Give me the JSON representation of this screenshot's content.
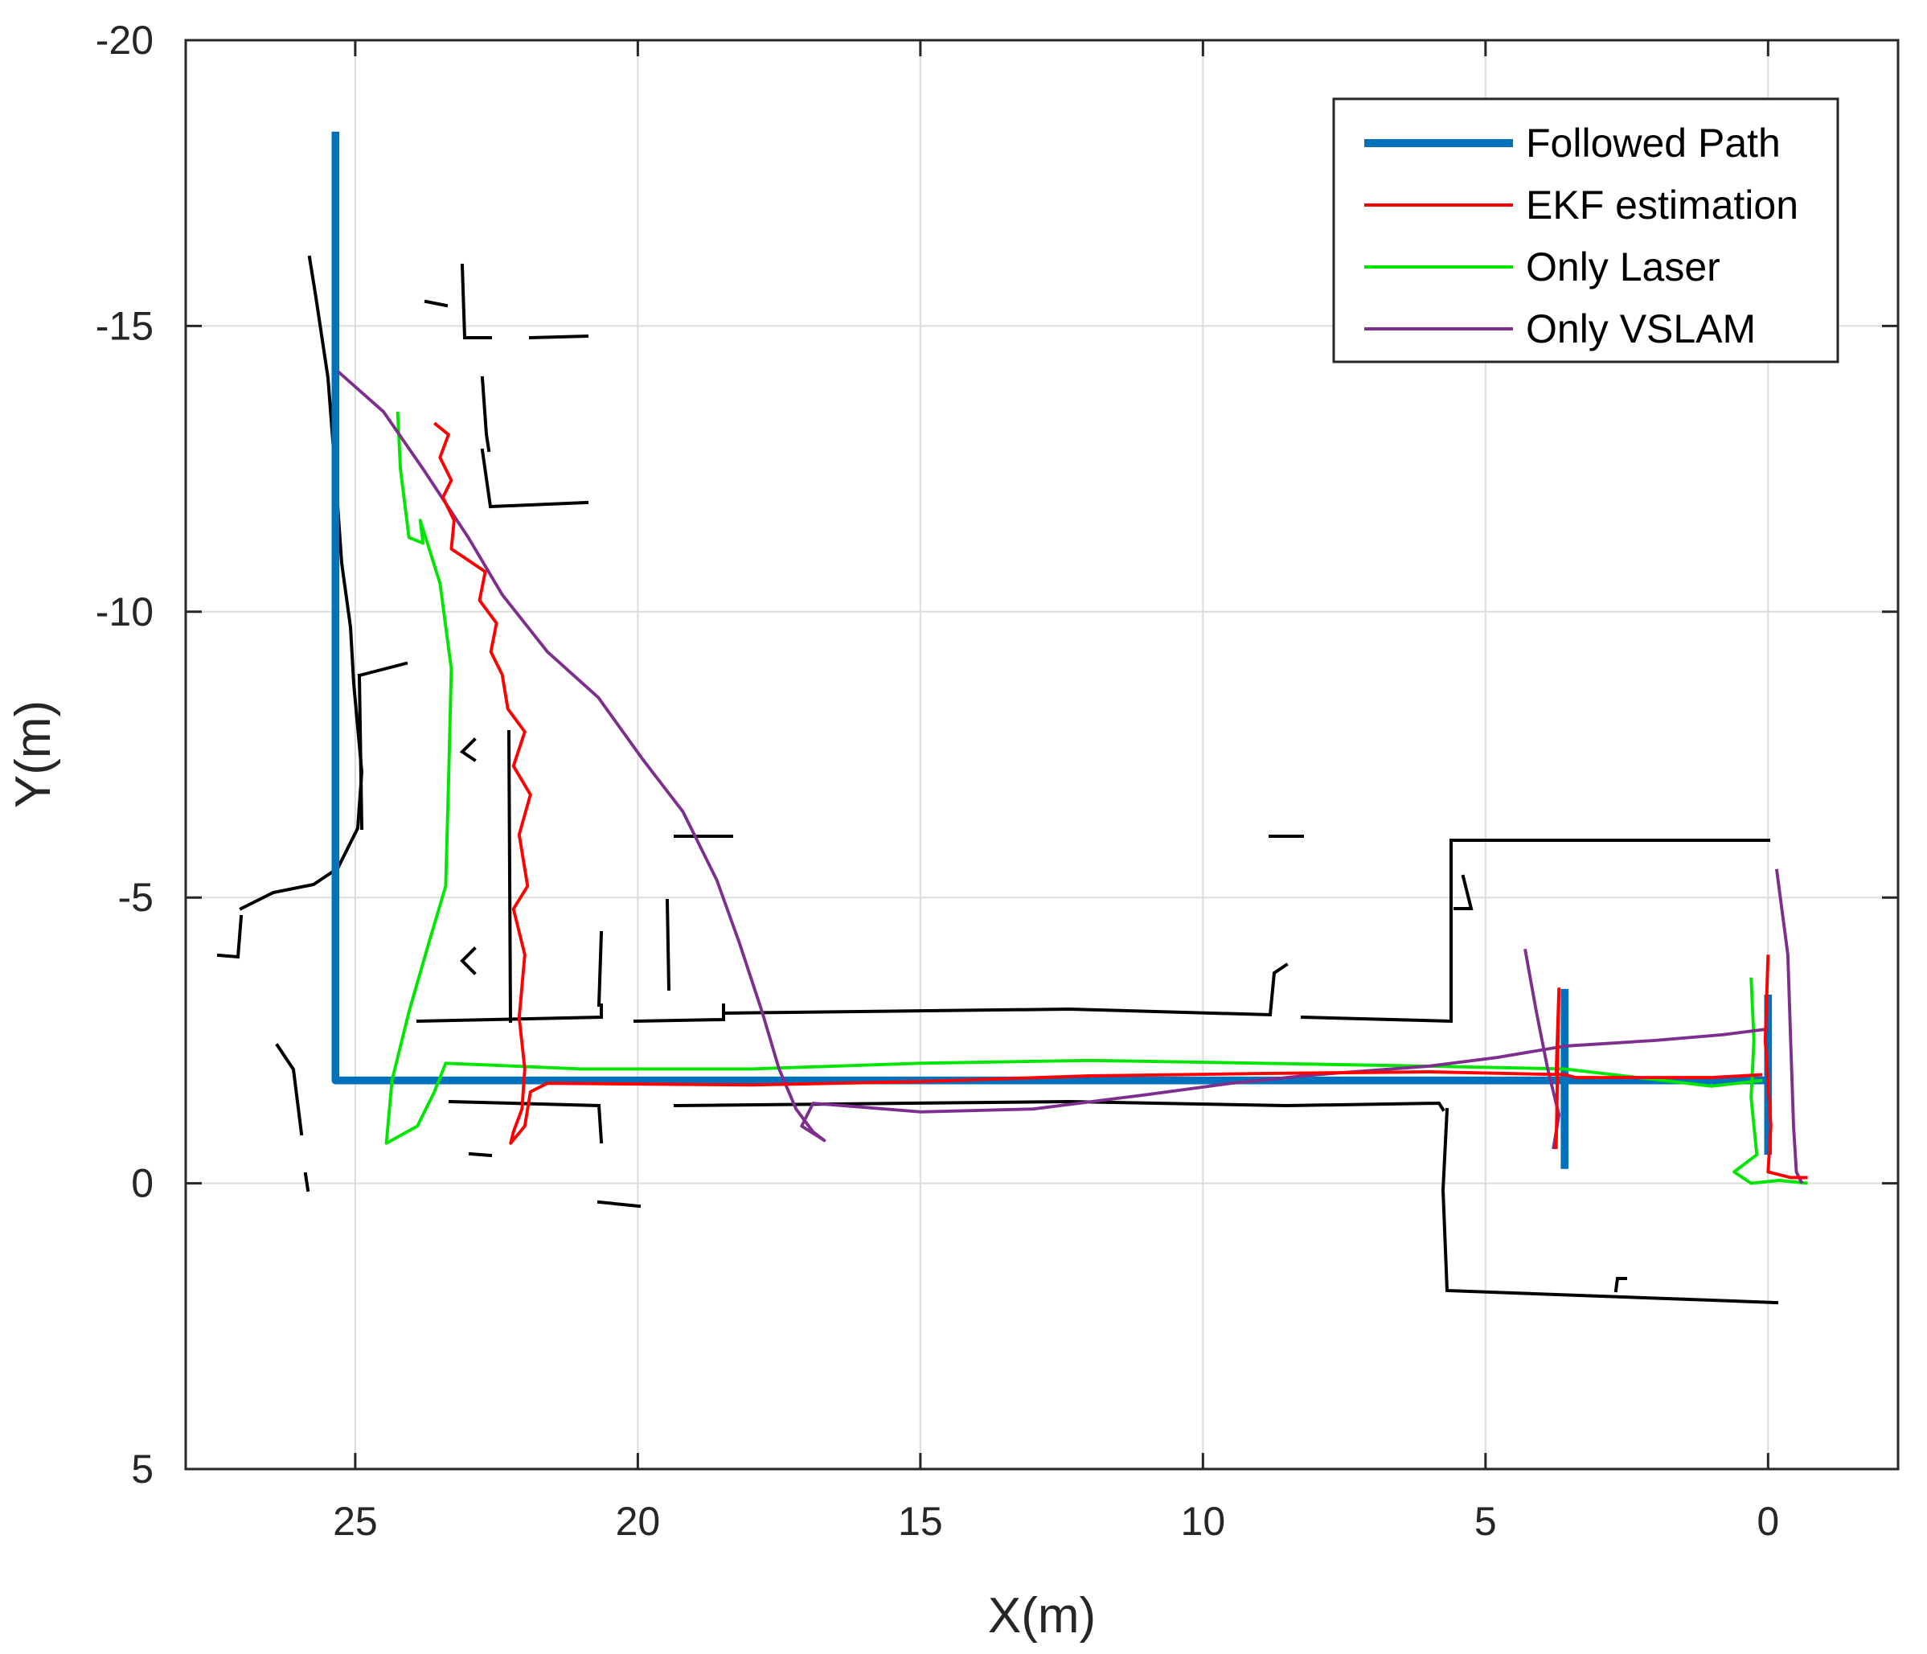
{
  "chart_data": {
    "type": "line",
    "title": "",
    "xlabel": "X(m)",
    "ylabel": "Y(m)",
    "xlim": [
      28.0,
      -2.3
    ],
    "ylim": [
      -20,
      5
    ],
    "x_reversed": true,
    "y_reversed": true,
    "grid": true,
    "legend_position": "top-right",
    "xticks": [
      25,
      20,
      15,
      10,
      5,
      0
    ],
    "yticks": [
      -20,
      -15,
      -10,
      -5,
      0,
      5
    ],
    "xtick_labels": [
      "25",
      "20",
      "15",
      "10",
      "5",
      "0"
    ],
    "ytick_labels": [
      "-20",
      "-15",
      "-10",
      "-5",
      "0",
      "5"
    ],
    "series": [
      {
        "name": "Followed Path",
        "color": "#0072BD",
        "width": 6,
        "segments": [
          [
            [
              25.35,
              -18.4
            ],
            [
              25.35,
              -1.8
            ],
            [
              0.0,
              -1.8
            ]
          ],
          [
            [
              3.6,
              -3.4
            ],
            [
              3.6,
              -0.25
            ]
          ],
          [
            [
              0.0,
              -3.3
            ],
            [
              0.0,
              -0.5
            ]
          ]
        ]
      },
      {
        "name": "EKF estimation",
        "color": "#FF0000",
        "width": 3,
        "segments": [
          [
            [
              23.6,
              -13.3
            ],
            [
              23.35,
              -13.1
            ],
            [
              23.5,
              -12.7
            ],
            [
              23.3,
              -12.3
            ],
            [
              23.45,
              -12.0
            ],
            [
              23.25,
              -11.6
            ],
            [
              23.3,
              -11.1
            ],
            [
              23.0,
              -10.9
            ],
            [
              22.7,
              -10.7
            ],
            [
              22.8,
              -10.2
            ],
            [
              22.5,
              -9.8
            ],
            [
              22.6,
              -9.3
            ],
            [
              22.4,
              -8.9
            ],
            [
              22.3,
              -8.3
            ],
            [
              22.0,
              -7.9
            ],
            [
              22.2,
              -7.3
            ],
            [
              21.9,
              -6.8
            ],
            [
              22.1,
              -6.1
            ],
            [
              21.95,
              -5.2
            ],
            [
              22.2,
              -4.8
            ],
            [
              22.0,
              -4.0
            ],
            [
              22.1,
              -2.9
            ],
            [
              22.0,
              -2.0
            ],
            [
              22.05,
              -1.3
            ],
            [
              22.2,
              -0.9
            ],
            [
              22.25,
              -0.7
            ],
            [
              22.0,
              -1.0
            ],
            [
              21.9,
              -1.6
            ],
            [
              21.6,
              -1.75
            ],
            [
              18.0,
              -1.72
            ],
            [
              15.0,
              -1.78
            ],
            [
              12.0,
              -1.88
            ],
            [
              9.0,
              -1.92
            ],
            [
              6.0,
              -1.95
            ],
            [
              3.6,
              -1.9
            ],
            [
              3.4,
              -1.85
            ],
            [
              1.0,
              -1.85
            ],
            [
              0.1,
              -1.9
            ]
          ],
          [
            [
              3.75,
              -1.9
            ],
            [
              3.7,
              -3.4
            ],
            [
              3.75,
              -0.6
            ]
          ],
          [
            [
              0.0,
              -4.0
            ],
            [
              0.05,
              -2.5
            ],
            [
              -0.05,
              -1.0
            ],
            [
              0.0,
              -0.2
            ],
            [
              -0.4,
              -0.1
            ],
            [
              -0.7,
              -0.1
            ]
          ]
        ]
      },
      {
        "name": "Only Laser",
        "color": "#00E600",
        "width": 3,
        "segments": [
          [
            [
              24.25,
              -13.5
            ],
            [
              24.2,
              -12.5
            ],
            [
              24.05,
              -11.3
            ],
            [
              23.8,
              -11.2
            ],
            [
              23.85,
              -11.6
            ],
            [
              23.5,
              -10.5
            ],
            [
              23.3,
              -9.0
            ],
            [
              23.35,
              -7.0
            ],
            [
              23.4,
              -5.2
            ],
            [
              23.7,
              -4.2
            ],
            [
              24.05,
              -3.0
            ],
            [
              24.35,
              -1.8
            ],
            [
              24.45,
              -0.7
            ],
            [
              23.9,
              -1.0
            ],
            [
              23.6,
              -1.6
            ],
            [
              23.4,
              -2.1
            ],
            [
              21.0,
              -2.0
            ],
            [
              18.0,
              -2.0
            ],
            [
              15.0,
              -2.1
            ],
            [
              12.0,
              -2.15
            ],
            [
              9.0,
              -2.1
            ],
            [
              6.0,
              -2.05
            ],
            [
              3.6,
              -2.0
            ],
            [
              1.0,
              -1.7
            ],
            [
              0.1,
              -1.8
            ]
          ],
          [
            [
              0.3,
              -3.6
            ],
            [
              0.25,
              -2.5
            ],
            [
              0.3,
              -1.5
            ],
            [
              0.2,
              -0.5
            ],
            [
              0.6,
              -0.2
            ],
            [
              0.3,
              0.0
            ],
            [
              -0.2,
              -0.05
            ],
            [
              -0.7,
              0.0
            ]
          ]
        ]
      },
      {
        "name": "Only VSLAM",
        "color": "#7E2F8E",
        "width": 3,
        "segments": [
          [
            [
              25.3,
              -14.2
            ],
            [
              24.5,
              -13.5
            ],
            [
              23.8,
              -12.5
            ],
            [
              23.0,
              -11.3
            ],
            [
              22.4,
              -10.3
            ],
            [
              21.6,
              -9.3
            ],
            [
              20.7,
              -8.5
            ],
            [
              19.9,
              -7.4
            ],
            [
              19.2,
              -6.5
            ],
            [
              18.6,
              -5.3
            ],
            [
              18.2,
              -4.2
            ],
            [
              17.8,
              -3.0
            ],
            [
              17.5,
              -2.0
            ],
            [
              17.2,
              -1.3
            ],
            [
              16.9,
              -0.9
            ],
            [
              16.7,
              -0.75
            ],
            [
              17.1,
              -1.0
            ],
            [
              16.9,
              -1.4
            ],
            [
              15.0,
              -1.25
            ],
            [
              13.0,
              -1.3
            ],
            [
              11.0,
              -1.55
            ],
            [
              9.5,
              -1.75
            ],
            [
              8.0,
              -1.9
            ],
            [
              6.0,
              -2.05
            ],
            [
              4.8,
              -2.2
            ],
            [
              3.6,
              -2.4
            ],
            [
              2.0,
              -2.5
            ],
            [
              0.8,
              -2.6
            ],
            [
              0.0,
              -2.7
            ]
          ],
          [
            [
              4.3,
              -4.1
            ],
            [
              4.1,
              -3.0
            ],
            [
              3.9,
              -2.0
            ],
            [
              3.7,
              -1.2
            ],
            [
              3.8,
              -0.6
            ]
          ],
          [
            [
              -0.15,
              -5.5
            ],
            [
              -0.35,
              -4.0
            ],
            [
              -0.4,
              -2.5
            ],
            [
              -0.45,
              -1.0
            ],
            [
              -0.5,
              -0.2
            ],
            [
              -0.6,
              0.0
            ]
          ]
        ]
      }
    ]
  }
}
